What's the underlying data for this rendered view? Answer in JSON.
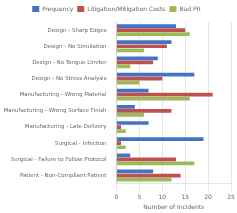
{
  "chart_data": {
    "type": "bar",
    "orientation": "horizontal",
    "categories": [
      "Design - Sharp Edges",
      "Design - No Simulation",
      "Design - No Tongue Limiter",
      "Design - No Stress Analysis",
      "Manufacturing - Wrong Material",
      "Manufacturing - Wrong Surface Finish",
      "Manufacturing - Late Delivery",
      "Surgical - Infection",
      "Surgical - Failure to Follow Protocol",
      "Patient - Non-Compliant Patient"
    ],
    "series": [
      {
        "name": "Frequency",
        "color": "#4472C4",
        "values": [
          13,
          12,
          9,
          17,
          7,
          4,
          7,
          19,
          3,
          8
        ]
      },
      {
        "name": "Litigation/Mitigation Costs",
        "color": "#C0504D",
        "values": [
          15,
          11,
          8,
          10,
          21,
          12,
          1,
          1,
          13,
          14
        ]
      },
      {
        "name": "Bad PR",
        "color": "#9BBB59",
        "values": [
          16,
          6,
          3,
          5,
          16,
          6,
          2,
          2,
          17,
          12
        ]
      }
    ],
    "xlabel": "Number of Incidents",
    "xlim": [
      0,
      25
    ],
    "xticks": [
      0,
      5,
      10,
      15,
      20,
      25
    ],
    "grid": true,
    "legend": "top"
  }
}
